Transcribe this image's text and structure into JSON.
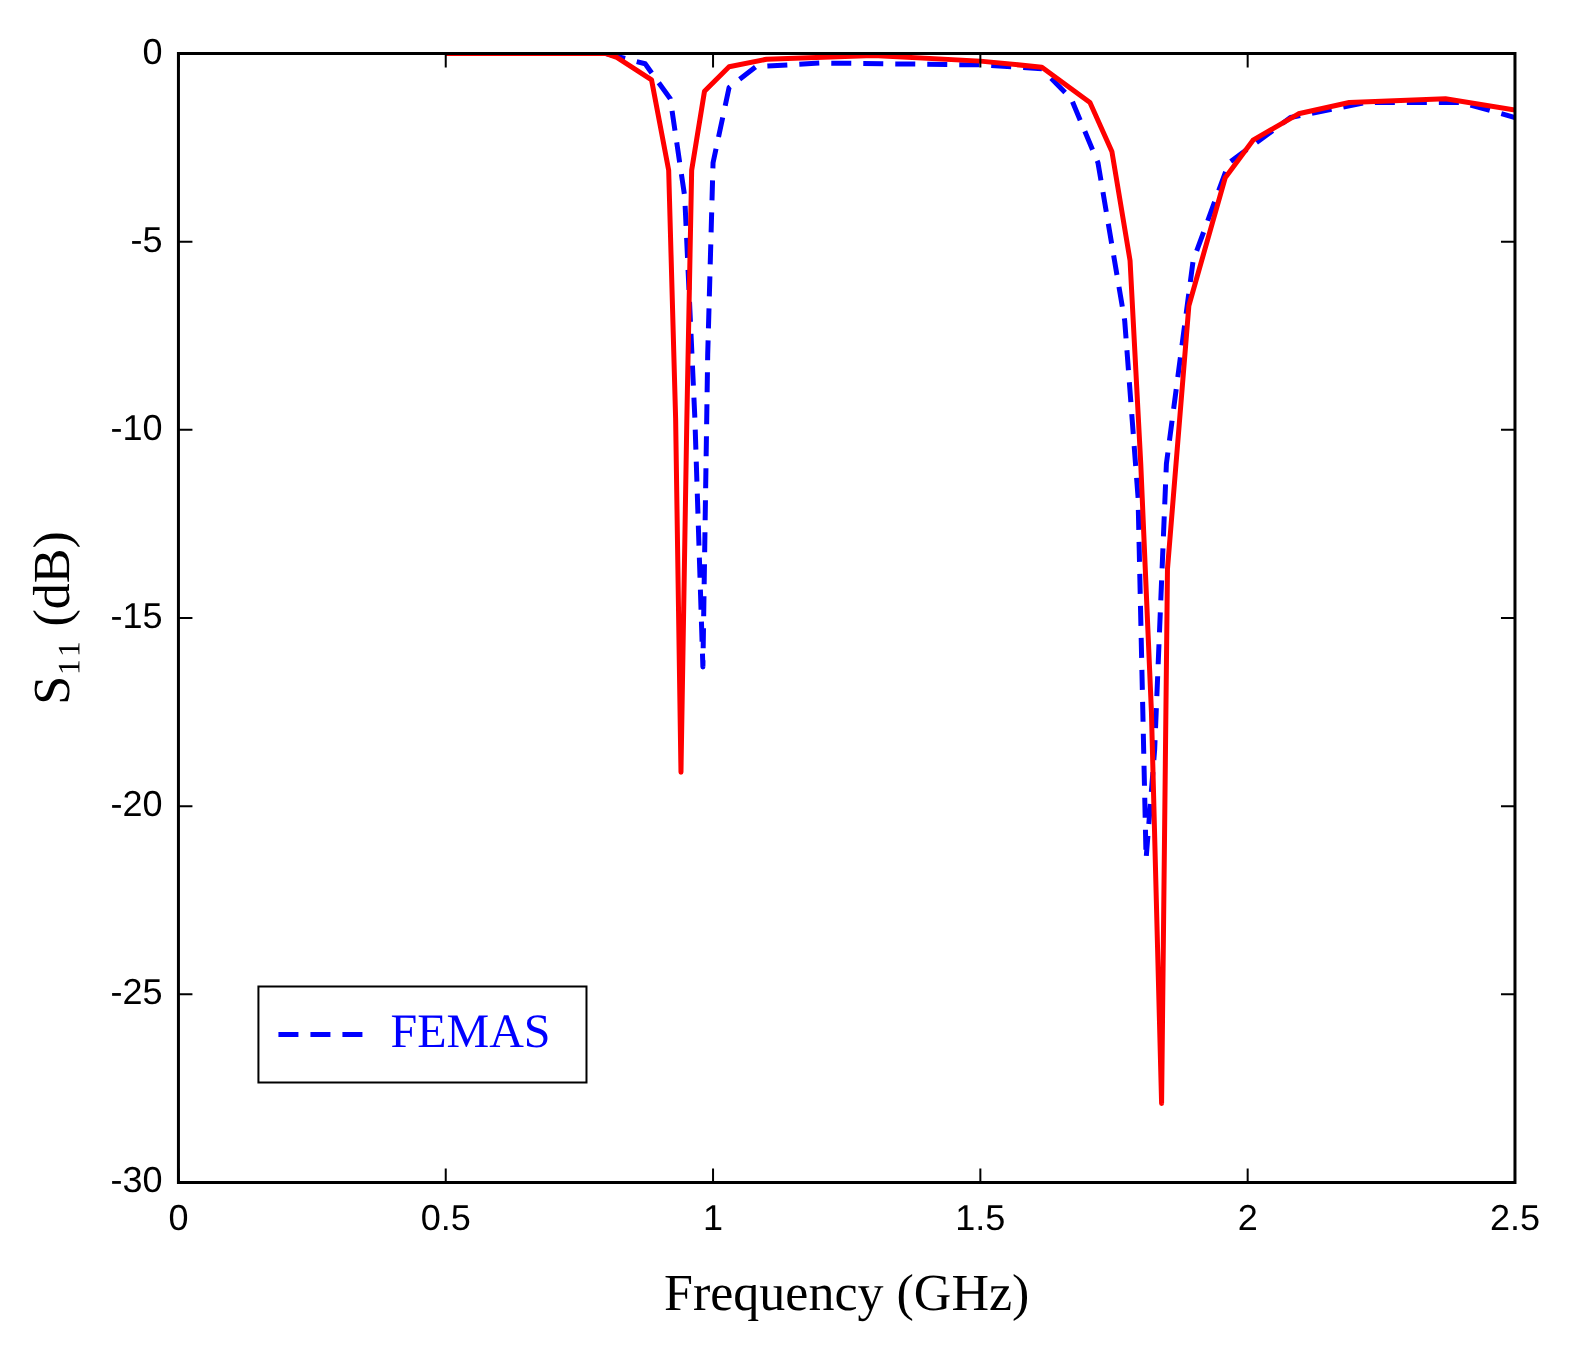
{
  "chart_data": {
    "type": "line",
    "xlabel": "Frequency (GHz)",
    "ylabel": "S₁₁ (dB)",
    "xlim": [
      0,
      2.5
    ],
    "ylim": [
      -30,
      0
    ],
    "xticks": [
      0,
      0.5,
      1,
      1.5,
      2,
      2.5
    ],
    "yticks": [
      -30,
      -25,
      -20,
      -15,
      -10,
      -5,
      0
    ],
    "grid": false,
    "legend": "bottom left",
    "marker": "none",
    "series": [
      {
        "color": "#ff0000",
        "line_style": "solid",
        "x": [
          0.5,
          0.7,
          0.8,
          0.82,
          0.885,
          0.917,
          0.93,
          0.94,
          0.951,
          0.96,
          0.984,
          1.03,
          1.1,
          1.3,
          1.5,
          1.615,
          1.705,
          1.746,
          1.78,
          1.8,
          1.82,
          1.839,
          1.85,
          1.89,
          1.958,
          2.01,
          2.095,
          2.19,
          2.37,
          2.5
        ],
        "values": [
          0,
          0,
          0,
          -0.1,
          -0.7,
          -3.1,
          -9.7,
          -19.1,
          -9.7,
          -3.1,
          -1.0,
          -0.35,
          -0.15,
          -0.05,
          -0.2,
          -0.36,
          -1.3,
          -2.6,
          -5.5,
          -10.9,
          -17.5,
          -27.9,
          -13.7,
          -6.7,
          -3.3,
          -2.3,
          -1.6,
          -1.3,
          -1.2,
          -1.5
        ]
      },
      {
        "name": "FEMAS",
        "color": "#0000ff",
        "line_style": "dashed",
        "x": [
          0.5,
          0.7,
          0.8,
          0.873,
          0.92,
          0.947,
          0.966,
          0.981,
          0.99,
          1.0,
          1.03,
          1.08,
          1.2,
          1.5,
          1.615,
          1.67,
          1.72,
          1.77,
          1.795,
          1.81,
          1.826,
          1.848,
          1.898,
          1.965,
          2.08,
          2.22,
          2.4,
          2.5
        ],
        "values": [
          0,
          0,
          0,
          -0.27,
          -1.2,
          -3.8,
          -9.7,
          -16.3,
          -8,
          -2.9,
          -0.9,
          -0.35,
          -0.25,
          -0.3,
          -0.4,
          -1.2,
          -2.9,
          -7.1,
          -11.8,
          -21.4,
          -18.5,
          -10.9,
          -5.5,
          -2.9,
          -1.7,
          -1.3,
          -1.3,
          -1.7
        ]
      }
    ]
  }
}
